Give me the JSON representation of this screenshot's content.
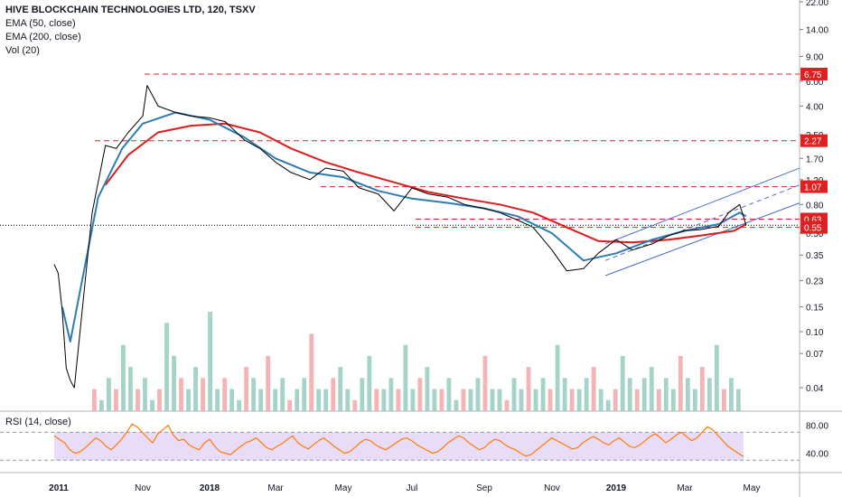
{
  "legend": {
    "title": "HIVE BLOCKCHAIN TECHNOLOGIES LTD, 120, TSXV",
    "ema50": "EMA (50, close)",
    "ema200": "EMA (200, close)",
    "vol": "Vol (20)"
  },
  "rsi_legend": "RSI (14, close)",
  "colors": {
    "price": "#000000",
    "ema50": "#2e7cb5",
    "ema200": "#e01b1b",
    "level": "#e02020",
    "channel": "#4a6ad0",
    "rsi": "#ff7b00",
    "rsi_band": "#e8dcf8",
    "vol_up": "#8cc9b9",
    "vol_down": "#f2a1a1"
  },
  "chart_data": [
    {
      "type": "line",
      "panel": "price",
      "scale": "log",
      "y_ticks": [
        "22.00",
        "14.00",
        "9.00",
        "6.00",
        "4.00",
        "2.50",
        "1.70",
        "1.20",
        "0.80",
        "0.50",
        "0.35",
        "0.23",
        "0.15",
        "0.10",
        "0.07",
        "0.04"
      ],
      "x_ticks": [
        "2011",
        "Nov",
        "2018",
        "Mar",
        "May",
        "Jul",
        "Sep",
        "Nov",
        "2019",
        "Mar",
        "May"
      ],
      "levels": [
        {
          "value": 6.75,
          "label": "6.75"
        },
        {
          "value": 2.27,
          "label": "2.27"
        },
        {
          "value": 1.07,
          "label": "1.07"
        },
        {
          "value": 0.63,
          "label": "0.63"
        },
        {
          "value": 0.55,
          "label": "0.55"
        }
      ],
      "current_price": 0.57,
      "series": [
        {
          "name": "Price",
          "x": [
            "2011-04",
            "2011-05",
            "2011-06",
            "2011-07",
            "2011-08",
            "2011-09",
            "2017-09-20",
            "2017-10-01",
            "2017-10-10",
            "2017-10-20",
            "2017-11-01",
            "2017-11-05",
            "2017-11-15",
            "2017-12-01",
            "2017-12-15",
            "2018-01-01",
            "2018-01-15",
            "2018-02-01",
            "2018-02-15",
            "2018-03-01",
            "2018-03-15",
            "2018-04-01",
            "2018-04-15",
            "2018-05-01",
            "2018-05-15",
            "2018-06-01",
            "2018-06-15",
            "2018-07-01",
            "2018-07-15",
            "2018-08-01",
            "2018-08-15",
            "2018-09-01",
            "2018-09-15",
            "2018-10-01",
            "2018-10-15",
            "2018-11-01",
            "2018-11-15",
            "2018-12-01",
            "2018-12-15",
            "2019-01-01",
            "2019-01-15",
            "2019-02-01",
            "2019-02-15",
            "2019-03-01",
            "2019-03-15",
            "2019-04-01",
            "2019-04-10",
            "2019-04-20",
            "2019-04-26"
          ],
          "values": [
            0.3,
            0.26,
            0.14,
            0.055,
            0.045,
            0.04,
            0.7,
            2.1,
            2.0,
            2.6,
            3.4,
            5.6,
            4.0,
            3.6,
            3.4,
            3.3,
            3.1,
            2.3,
            2.0,
            1.6,
            1.35,
            1.2,
            1.45,
            1.38,
            1.05,
            0.95,
            0.72,
            1.05,
            0.95,
            0.9,
            0.8,
            0.75,
            0.7,
            0.62,
            0.55,
            0.38,
            0.27,
            0.28,
            0.36,
            0.45,
            0.38,
            0.42,
            0.48,
            0.52,
            0.53,
            0.56,
            0.7,
            0.8,
            0.57
          ]
        },
        {
          "name": "EMA (50, close)",
          "x": [
            "2011-06",
            "2011-08",
            "2017-09-25",
            "2017-10-15",
            "2017-11-01",
            "2017-12-01",
            "2018-01-01",
            "2018-02-01",
            "2018-03-01",
            "2018-04-01",
            "2018-05-01",
            "2018-06-01",
            "2018-07-01",
            "2018-08-01",
            "2018-09-01",
            "2018-10-01",
            "2018-11-01",
            "2018-12-01",
            "2019-01-01",
            "2019-02-01",
            "2019-03-01",
            "2019-04-01",
            "2019-04-20",
            "2019-04-26"
          ],
          "values": [
            0.15,
            0.085,
            0.9,
            2.0,
            3.0,
            3.6,
            3.2,
            2.4,
            1.7,
            1.35,
            1.25,
            1.0,
            0.88,
            0.82,
            0.75,
            0.66,
            0.5,
            0.32,
            0.36,
            0.45,
            0.52,
            0.58,
            0.7,
            0.66
          ]
        },
        {
          "name": "EMA (200, close)",
          "x": [
            "2017-10-01",
            "2017-10-20",
            "2017-11-15",
            "2017-12-15",
            "2018-01-15",
            "2018-02-15",
            "2018-03-15",
            "2018-04-15",
            "2018-05-15",
            "2018-06-15",
            "2018-07-15",
            "2018-08-15",
            "2018-09-15",
            "2018-10-15",
            "2018-11-15",
            "2018-12-15",
            "2019-01-15",
            "2019-02-15",
            "2019-03-15",
            "2019-04-15",
            "2019-04-26"
          ],
          "values": [
            1.1,
            1.8,
            2.6,
            2.9,
            3.0,
            2.6,
            2.0,
            1.6,
            1.35,
            1.15,
            0.98,
            0.88,
            0.8,
            0.7,
            0.55,
            0.44,
            0.43,
            0.45,
            0.48,
            0.52,
            0.58
          ]
        }
      ]
    },
    {
      "type": "bar",
      "panel": "volume",
      "name": "Vol (20)",
      "values": [
        2,
        1,
        3,
        2,
        6,
        4,
        2,
        3,
        1,
        2,
        8,
        5,
        3,
        2,
        4,
        3,
        9,
        2,
        3,
        2,
        1,
        4,
        3,
        2,
        5,
        2,
        3,
        1,
        2,
        3,
        7,
        2,
        2,
        3,
        4,
        2,
        1,
        3,
        5,
        2,
        2,
        3,
        2,
        6,
        2,
        3,
        4,
        2,
        2,
        3,
        1,
        2,
        2,
        3,
        5,
        2,
        2,
        1,
        3,
        2,
        4,
        2,
        3,
        2,
        6,
        3,
        2,
        2,
        3,
        4,
        2,
        1,
        2,
        5,
        3,
        2,
        3,
        4,
        2,
        3,
        2,
        5,
        3,
        2,
        4,
        3,
        6,
        2,
        3,
        2
      ]
    },
    {
      "type": "line",
      "panel": "rsi",
      "name": "RSI (14, close)",
      "y_ticks": [
        "80.00",
        "40.00"
      ],
      "band": [
        30,
        70
      ],
      "values": [
        65,
        60,
        55,
        45,
        40,
        42,
        48,
        55,
        62,
        58,
        50,
        45,
        52,
        60,
        70,
        82,
        78,
        70,
        62,
        55,
        68,
        74,
        80,
        66,
        58,
        60,
        52,
        48,
        45,
        55,
        60,
        50,
        42,
        40,
        38,
        44,
        50,
        55,
        58,
        62,
        55,
        48,
        45,
        50,
        54,
        60,
        65,
        55,
        50,
        46,
        52,
        58,
        62,
        56,
        50,
        45,
        40,
        42,
        48,
        55,
        60,
        58,
        52,
        48,
        45,
        50,
        55,
        60,
        62,
        58,
        52,
        48,
        44,
        40,
        42,
        48,
        55,
        60,
        65,
        62,
        55,
        50,
        45,
        48,
        55,
        60,
        58,
        52,
        48,
        45,
        40,
        36,
        38,
        44,
        50,
        56,
        62,
        58,
        54,
        50,
        46,
        48,
        55,
        60,
        64,
        60,
        55,
        52,
        58,
        62,
        56,
        50,
        48,
        52,
        58,
        64,
        68,
        62,
        55,
        60,
        66,
        70,
        64,
        58,
        62,
        70,
        78,
        74,
        66,
        58,
        50,
        45,
        40,
        35
      ]
    }
  ]
}
